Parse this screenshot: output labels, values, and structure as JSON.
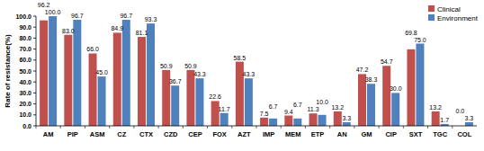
{
  "chart_data": {
    "type": "bar",
    "y_label": "Rate of resistance(%)",
    "categories": [
      "AM",
      "PIP",
      "ASM",
      "CZ",
      "CTX",
      "CZD",
      "CEP",
      "FOX",
      "AZT",
      "IMP",
      "MEM",
      "ETP",
      "AN",
      "GM",
      "CIP",
      "SXT",
      "TGC",
      "COL"
    ],
    "series": [
      {
        "name": "Clinical",
        "color": "#c0504d",
        "values": [
          96.2,
          83.0,
          66.0,
          84.9,
          81.1,
          50.9,
          50.9,
          22.6,
          58.5,
          7.5,
          9.4,
          11.3,
          13.2,
          47.2,
          54.7,
          69.8,
          13.2,
          0.0
        ]
      },
      {
        "name": "Environment",
        "color": "#4f81bd",
        "values": [
          100.0,
          96.7,
          45.0,
          96.7,
          93.3,
          36.7,
          43.3,
          11.7,
          43.3,
          6.7,
          6.7,
          10.0,
          3.3,
          38.3,
          30.0,
          75.0,
          1.7,
          3.3
        ]
      }
    ],
    "ylim": [
      0,
      100
    ],
    "yticks": [
      {
        "value": 0,
        "label": "0.0"
      },
      {
        "value": 10,
        "label": "10.0"
      },
      {
        "value": 20,
        "label": "20.0"
      },
      {
        "value": 30,
        "label": "30.0"
      },
      {
        "value": 40,
        "label": "40.0"
      },
      {
        "value": 50,
        "label": "50.0"
      },
      {
        "value": 60,
        "label": "60.0"
      },
      {
        "value": 70,
        "label": "70.0"
      },
      {
        "value": 80,
        "label": "80.0"
      },
      {
        "value": 90,
        "label": "90.0"
      },
      {
        "value": 100,
        "label": "100.0"
      }
    ],
    "grid": false,
    "legend": "top-right",
    "data_labels": true
  }
}
